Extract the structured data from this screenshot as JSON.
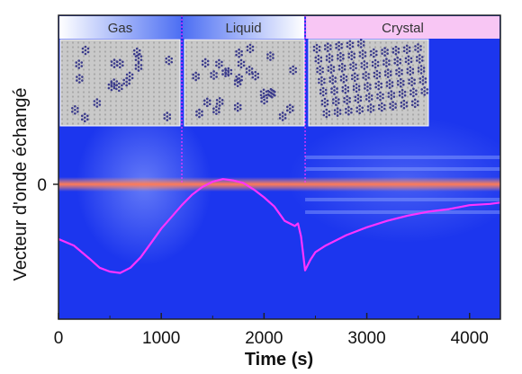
{
  "chart_data": {
    "type": "line",
    "xlabel": "Time (s)",
    "ylabel": "Vecteur d'onde échangé",
    "xlim": [
      0,
      4300
    ],
    "x_ticks": [
      0,
      1000,
      2000,
      3000,
      4000
    ],
    "y_ticks": [
      {
        "label": "0",
        "value": 0
      }
    ],
    "grid": false,
    "background": "spectrogram heatmap (blue field, bright band at y = 0)",
    "phases": [
      {
        "label": "Gas",
        "start": 0,
        "end": 1200
      },
      {
        "label": "Liquid",
        "start": 1200,
        "end": 2400
      },
      {
        "label": "Crystal",
        "start": 2400,
        "end": 4300
      }
    ],
    "series": [
      {
        "color": "#ff33ff",
        "x": [
          0,
          150,
          300,
          400,
          500,
          600,
          700,
          800,
          900,
          1000,
          1100,
          1200,
          1300,
          1400,
          1500,
          1600,
          1700,
          1800,
          1900,
          2000,
          2100,
          2200,
          2300,
          2330,
          2360,
          2400,
          2450,
          2500,
          2600,
          2800,
          3000,
          3200,
          3400,
          3600,
          3800,
          4000,
          4200,
          4300
        ],
        "y": [
          -0.42,
          -0.47,
          -0.57,
          -0.64,
          -0.67,
          -0.68,
          -0.64,
          -0.56,
          -0.45,
          -0.34,
          -0.25,
          -0.16,
          -0.08,
          -0.02,
          0.02,
          0.04,
          0.03,
          0.01,
          -0.04,
          -0.1,
          -0.17,
          -0.28,
          -0.32,
          -0.3,
          -0.4,
          -0.66,
          -0.58,
          -0.52,
          -0.47,
          -0.39,
          -0.33,
          -0.28,
          -0.24,
          -0.21,
          -0.19,
          -0.16,
          -0.15,
          -0.14
        ]
      }
    ]
  },
  "colors": {
    "plot_bg": "#1c36ee",
    "zero_band": "#ff7a56",
    "curve": "#ff33ff",
    "phase_gas": "#7f9bf8",
    "phase_liquid": "#5d7cf5",
    "phase_crystal": "#f8c6f4",
    "divider": "#ff33ff"
  },
  "insets": [
    {
      "phase": "Gas",
      "pattern": "scattered clusters"
    },
    {
      "phase": "Liquid",
      "pattern": "denser disordered clusters"
    },
    {
      "phase": "Crystal",
      "pattern": "ordered lattice"
    }
  ]
}
